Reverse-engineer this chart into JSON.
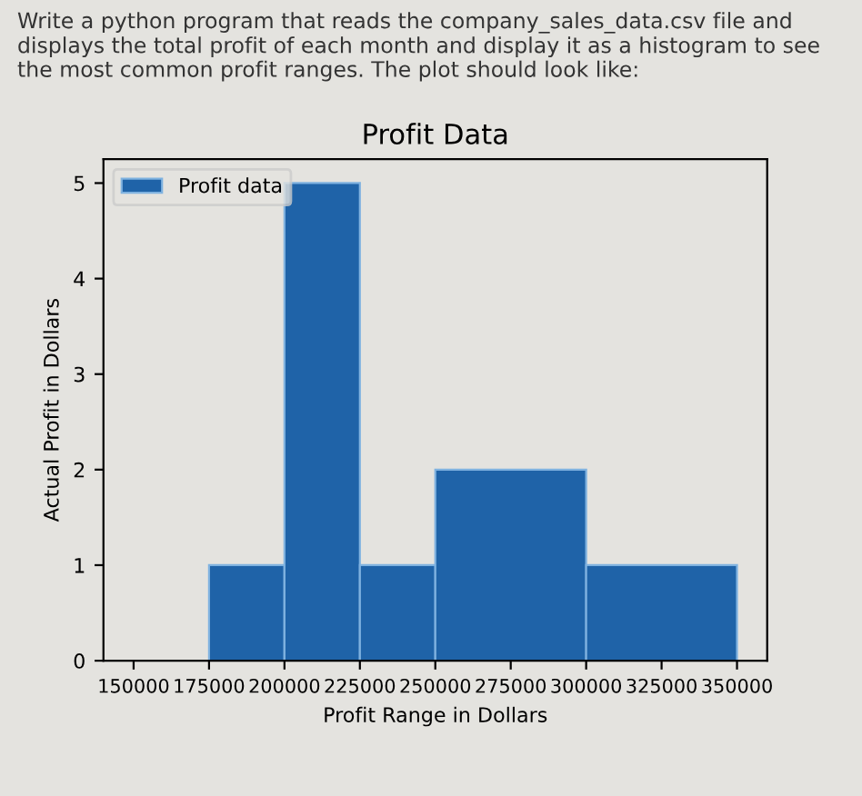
{
  "chart_data": {
    "type": "histogram",
    "title": "Profit Data",
    "xlabel": "Profit Range in Dollars",
    "ylabel": "Actual Profit in Dollars",
    "annotations": [
      "Write a python program that reads the company_sales_data.csv file and displays the total profit of each month and display it as a histogram to see the most common profit ranges. The plot should look like:"
    ],
    "series": [
      {
        "name": "Profit data",
        "color": "#1f63a8",
        "values": [
          1,
          5,
          1,
          2,
          1
        ]
      }
    ],
    "bins": [
      175000,
      200000,
      225000,
      250000,
      300000,
      350000
    ],
    "xlim": [
      140000,
      360000
    ],
    "xticks": [
      150000,
      175000,
      200000,
      225000,
      250000,
      275000,
      300000,
      325000,
      350000
    ],
    "ylim": [
      0,
      5.25
    ],
    "yticks": [
      0,
      1,
      2,
      3,
      4,
      5
    ],
    "grid": false,
    "legend": "top left"
  }
}
